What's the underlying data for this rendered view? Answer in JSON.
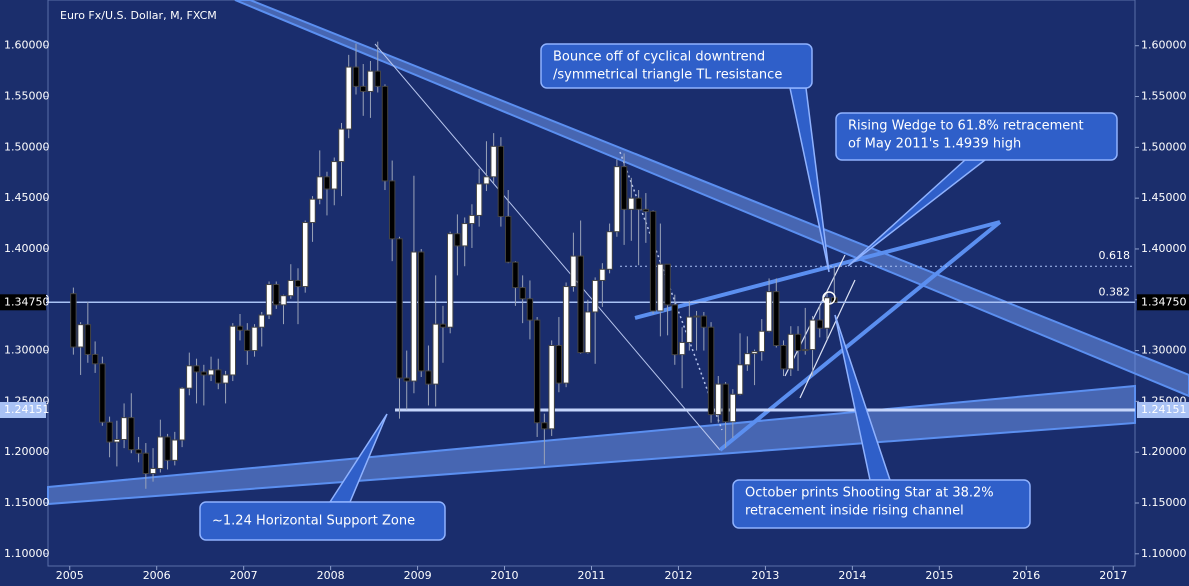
{
  "chart_data": {
    "type": "candlestick",
    "title": "Euro Fx/U.S. Dollar, M, FXCM",
    "up_color": "#ffffff",
    "down_color": "#000000",
    "xlim": [
      2004.75,
      2017.25
    ],
    "xticks": [
      2005,
      2006,
      2007,
      2008,
      2009,
      2010,
      2011,
      2012,
      2013,
      2014,
      2015,
      2016,
      2017
    ],
    "ylim": [
      1.088,
      1.645
    ],
    "yticks": [
      {
        "value": 1.1,
        "label": "1.10000"
      },
      {
        "value": 1.15,
        "label": "1.15000"
      },
      {
        "value": 1.2,
        "label": "1.20000"
      },
      {
        "value": 1.25,
        "label": "1.25000"
      },
      {
        "value": 1.3,
        "label": "1.30000"
      },
      {
        "value": 1.35,
        "label": "1.35000"
      },
      {
        "value": 1.4,
        "label": "1.40000"
      },
      {
        "value": 1.45,
        "label": "1.45000"
      },
      {
        "value": 1.5,
        "label": "1.50000"
      },
      {
        "value": 1.55,
        "label": "1.55000"
      },
      {
        "value": 1.6,
        "label": "1.60000"
      }
    ],
    "price_lines": [
      {
        "value": 1.3475,
        "label": "1.34750"
      },
      {
        "value": 1.24151,
        "label": "1.24151"
      }
    ],
    "fib_levels": [
      {
        "value": 1.383,
        "label": "0.618"
      },
      {
        "value": 1.3475,
        "label": "0.382"
      }
    ],
    "annotations": [
      {
        "lines": [
          "Bounce off of cyclical downtrend",
          "/symmetrical triangle TL resistance"
        ]
      },
      {
        "lines": [
          "Rising Wedge to 61.8% retracement",
          "of May 2011's 1.4939 high"
        ]
      },
      {
        "lines": [
          "October prints Shooting Star at 38.2%",
          "retracement inside rising channel"
        ]
      },
      {
        "lines": [
          "~1.24 Horizontal Support Zone"
        ]
      }
    ],
    "x": [
      2005.042,
      2005.125,
      2005.208,
      2005.292,
      2005.375,
      2005.458,
      2005.542,
      2005.625,
      2005.708,
      2005.792,
      2005.875,
      2005.958,
      2006.042,
      2006.125,
      2006.208,
      2006.292,
      2006.375,
      2006.458,
      2006.542,
      2006.625,
      2006.708,
      2006.792,
      2006.875,
      2006.958,
      2007.042,
      2007.125,
      2007.208,
      2007.292,
      2007.375,
      2007.458,
      2007.542,
      2007.625,
      2007.708,
      2007.792,
      2007.875,
      2007.958,
      2008.042,
      2008.125,
      2008.208,
      2008.292,
      2008.375,
      2008.458,
      2008.542,
      2008.625,
      2008.708,
      2008.792,
      2008.875,
      2008.958,
      2009.042,
      2009.125,
      2009.208,
      2009.292,
      2009.375,
      2009.458,
      2009.542,
      2009.625,
      2009.708,
      2009.792,
      2009.875,
      2009.958,
      2010.042,
      2010.125,
      2010.208,
      2010.292,
      2010.375,
      2010.458,
      2010.542,
      2010.625,
      2010.708,
      2010.792,
      2010.875,
      2010.958,
      2011.042,
      2011.125,
      2011.208,
      2011.292,
      2011.375,
      2011.458,
      2011.542,
      2011.625,
      2011.708,
      2011.792,
      2011.875,
      2011.958,
      2012.042,
      2012.125,
      2012.208,
      2012.292,
      2012.375,
      2012.458,
      2012.542,
      2012.625,
      2012.708,
      2012.792,
      2012.875,
      2012.958,
      2013.042,
      2013.125,
      2013.208,
      2013.292,
      2013.375,
      2013.458,
      2013.542,
      2013.625,
      2013.708,
      2013.792
    ],
    "ohlc": [
      [
        1.356,
        1.362,
        1.296,
        1.3035
      ],
      [
        1.3035,
        1.328,
        1.276,
        1.3255
      ],
      [
        1.3255,
        1.348,
        1.288,
        1.2962
      ],
      [
        1.2962,
        1.309,
        1.278,
        1.287
      ],
      [
        1.287,
        1.294,
        1.226,
        1.2295
      ],
      [
        1.2295,
        1.235,
        1.195,
        1.21
      ],
      [
        1.21,
        1.231,
        1.186,
        1.2125
      ],
      [
        1.2125,
        1.248,
        1.204,
        1.234
      ],
      [
        1.234,
        1.258,
        1.199,
        1.2025
      ],
      [
        1.2025,
        1.215,
        1.19,
        1.199
      ],
      [
        1.199,
        1.209,
        1.164,
        1.179
      ],
      [
        1.179,
        1.204,
        1.171,
        1.184
      ],
      [
        1.184,
        1.232,
        1.18,
        1.215
      ],
      [
        1.215,
        1.218,
        1.183,
        1.192
      ],
      [
        1.192,
        1.22,
        1.187,
        1.212
      ],
      [
        1.212,
        1.264,
        1.205,
        1.263
      ],
      [
        1.263,
        1.298,
        1.256,
        1.285
      ],
      [
        1.285,
        1.292,
        1.248,
        1.279
      ],
      [
        1.279,
        1.286,
        1.246,
        1.276
      ],
      [
        1.276,
        1.294,
        1.27,
        1.281
      ],
      [
        1.281,
        1.292,
        1.262,
        1.268
      ],
      [
        1.268,
        1.28,
        1.248,
        1.276
      ],
      [
        1.276,
        1.327,
        1.27,
        1.324
      ],
      [
        1.324,
        1.336,
        1.31,
        1.32
      ],
      [
        1.32,
        1.327,
        1.286,
        1.3
      ],
      [
        1.3,
        1.326,
        1.294,
        1.323
      ],
      [
        1.323,
        1.338,
        1.304,
        1.335
      ],
      [
        1.335,
        1.368,
        1.331,
        1.365
      ],
      [
        1.365,
        1.368,
        1.341,
        1.345
      ],
      [
        1.345,
        1.355,
        1.326,
        1.354
      ],
      [
        1.354,
        1.385,
        1.351,
        1.369
      ],
      [
        1.369,
        1.381,
        1.326,
        1.363
      ],
      [
        1.363,
        1.428,
        1.357,
        1.426
      ],
      [
        1.426,
        1.452,
        1.407,
        1.449
      ],
      [
        1.449,
        1.497,
        1.444,
        1.471
      ],
      [
        1.471,
        1.476,
        1.433,
        1.459
      ],
      [
        1.459,
        1.49,
        1.443,
        1.486
      ],
      [
        1.486,
        1.524,
        1.452,
        1.518
      ],
      [
        1.518,
        1.591,
        1.509,
        1.579
      ],
      [
        1.579,
        1.602,
        1.552,
        1.56
      ],
      [
        1.56,
        1.582,
        1.531,
        1.555
      ],
      [
        1.555,
        1.585,
        1.529,
        1.575
      ],
      [
        1.575,
        1.604,
        1.554,
        1.56
      ],
      [
        1.56,
        1.562,
        1.458,
        1.467
      ],
      [
        1.467,
        1.487,
        1.388,
        1.41
      ],
      [
        1.41,
        1.412,
        1.233,
        1.273
      ],
      [
        1.273,
        1.3,
        1.242,
        1.27
      ],
      [
        1.27,
        1.472,
        1.258,
        1.397
      ],
      [
        1.397,
        1.4,
        1.274,
        1.28
      ],
      [
        1.28,
        1.305,
        1.246,
        1.267
      ],
      [
        1.267,
        1.374,
        1.245,
        1.326
      ],
      [
        1.326,
        1.344,
        1.288,
        1.323
      ],
      [
        1.323,
        1.417,
        1.317,
        1.415
      ],
      [
        1.415,
        1.434,
        1.374,
        1.403
      ],
      [
        1.403,
        1.431,
        1.383,
        1.425
      ],
      [
        1.425,
        1.444,
        1.401,
        1.433
      ],
      [
        1.433,
        1.479,
        1.422,
        1.464
      ],
      [
        1.464,
        1.506,
        1.457,
        1.471
      ],
      [
        1.471,
        1.514,
        1.465,
        1.501
      ],
      [
        1.501,
        1.51,
        1.422,
        1.432
      ],
      [
        1.432,
        1.458,
        1.386,
        1.387
      ],
      [
        1.387,
        1.388,
        1.344,
        1.362
      ],
      [
        1.362,
        1.374,
        1.327,
        1.351
      ],
      [
        1.351,
        1.369,
        1.311,
        1.33
      ],
      [
        1.33,
        1.333,
        1.215,
        1.229
      ],
      [
        1.229,
        1.238,
        1.188,
        1.223
      ],
      [
        1.223,
        1.31,
        1.216,
        1.305
      ],
      [
        1.305,
        1.333,
        1.259,
        1.268
      ],
      [
        1.268,
        1.367,
        1.264,
        1.363
      ],
      [
        1.363,
        1.416,
        1.358,
        1.393
      ],
      [
        1.393,
        1.428,
        1.297,
        1.298
      ],
      [
        1.298,
        1.35,
        1.297,
        1.338
      ],
      [
        1.338,
        1.372,
        1.287,
        1.369
      ],
      [
        1.369,
        1.386,
        1.343,
        1.38
      ],
      [
        1.38,
        1.425,
        1.376,
        1.417
      ],
      [
        1.417,
        1.488,
        1.412,
        1.481
      ],
      [
        1.481,
        1.494,
        1.404,
        1.439
      ],
      [
        1.439,
        1.47,
        1.408,
        1.45
      ],
      [
        1.45,
        1.458,
        1.384,
        1.439
      ],
      [
        1.439,
        1.455,
        1.406,
        1.437
      ],
      [
        1.437,
        1.438,
        1.336,
        1.339
      ],
      [
        1.339,
        1.425,
        1.314,
        1.385
      ],
      [
        1.385,
        1.385,
        1.315,
        1.345
      ],
      [
        1.345,
        1.355,
        1.286,
        1.296
      ],
      [
        1.296,
        1.323,
        1.263,
        1.308
      ],
      [
        1.308,
        1.349,
        1.3,
        1.333
      ],
      [
        1.333,
        1.339,
        1.3,
        1.334
      ],
      [
        1.334,
        1.338,
        1.3,
        1.323
      ],
      [
        1.323,
        1.328,
        1.229,
        1.237
      ],
      [
        1.237,
        1.275,
        1.229,
        1.267
      ],
      [
        1.267,
        1.269,
        1.204,
        1.23
      ],
      [
        1.23,
        1.262,
        1.214,
        1.257
      ],
      [
        1.257,
        1.317,
        1.256,
        1.286
      ],
      [
        1.286,
        1.314,
        1.28,
        1.297
      ],
      [
        1.297,
        1.301,
        1.266,
        1.299
      ],
      [
        1.299,
        1.331,
        1.29,
        1.319
      ],
      [
        1.319,
        1.371,
        1.318,
        1.358
      ],
      [
        1.358,
        1.371,
        1.303,
        1.305
      ],
      [
        1.305,
        1.31,
        1.275,
        1.282
      ],
      [
        1.282,
        1.324,
        1.275,
        1.316
      ],
      [
        1.316,
        1.324,
        1.28,
        1.3
      ],
      [
        1.3,
        1.342,
        1.296,
        1.301
      ],
      [
        1.301,
        1.334,
        1.275,
        1.33
      ],
      [
        1.33,
        1.345,
        1.313,
        1.322
      ],
      [
        1.322,
        1.359,
        1.311,
        1.352
      ],
      [
        1.352,
        1.383,
        1.347,
        1.3475
      ]
    ]
  }
}
